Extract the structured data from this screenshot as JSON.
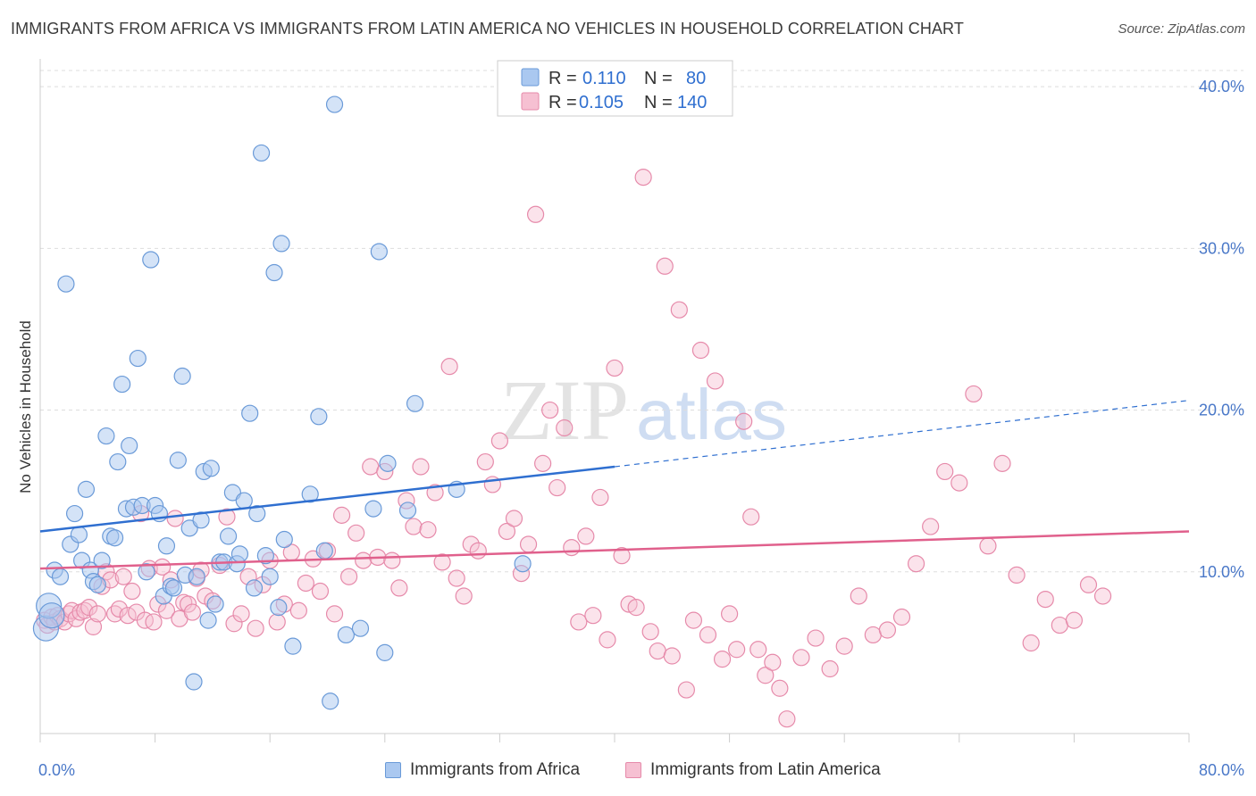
{
  "title": "IMMIGRANTS FROM AFRICA VS IMMIGRANTS FROM LATIN AMERICA NO VEHICLES IN HOUSEHOLD CORRELATION CHART",
  "source": "Source: ZipAtlas.com",
  "watermark": {
    "zip": "ZIP",
    "atlas": "atlas"
  },
  "colors": {
    "africa_fill": "#aac8f0",
    "africa_stroke": "#6a9ad8",
    "africa_line": "#2f6fd0",
    "latin_fill": "#f6c0d2",
    "latin_stroke": "#e68aaa",
    "latin_line": "#e0608c",
    "tick_label": "#4a78c8",
    "grid": "#dddddd"
  },
  "legend": {
    "africa": {
      "r_label": "R =",
      "r_value": "0.110",
      "n_label": "N =",
      "n_value": "80"
    },
    "latin": {
      "r_label": "R =",
      "r_value": "0.105",
      "n_label": "N =",
      "n_value": "140"
    }
  },
  "chart_data": {
    "type": "scatter",
    "title": "IMMIGRANTS FROM AFRICA VS IMMIGRANTS FROM LATIN AMERICA NO VEHICLES IN HOUSEHOLD CORRELATION CHART",
    "xlabel": "",
    "ylabel": "No Vehicles in Household",
    "xlim": [
      0,
      80
    ],
    "ylim": [
      0,
      41
    ],
    "x_tick_labels": [
      "0.0%",
      "80.0%"
    ],
    "y_ticks": [
      10,
      20,
      30,
      40
    ],
    "y_tick_labels": [
      "10.0%",
      "20.0%",
      "30.0%",
      "40.0%"
    ],
    "grid": true,
    "legend_position": "top-center",
    "series": [
      {
        "name": "Immigrants from Africa",
        "trend": {
          "x": [
            0,
            40
          ],
          "y": [
            12.5,
            16.5
          ],
          "dashed_to": [
            80,
            20.6
          ]
        },
        "points": [
          [
            0.4,
            6.5
          ],
          [
            0.6,
            7.9
          ],
          [
            0.8,
            7.3
          ],
          [
            1.0,
            10.1
          ],
          [
            1.4,
            9.7
          ],
          [
            1.8,
            27.8
          ],
          [
            2.1,
            11.7
          ],
          [
            2.4,
            13.6
          ],
          [
            2.7,
            12.3
          ],
          [
            2.9,
            10.7
          ],
          [
            3.2,
            15.1
          ],
          [
            3.5,
            10.1
          ],
          [
            3.7,
            9.4
          ],
          [
            4.0,
            9.2
          ],
          [
            4.3,
            10.7
          ],
          [
            4.6,
            18.4
          ],
          [
            4.9,
            12.2
          ],
          [
            5.2,
            12.1
          ],
          [
            5.4,
            16.8
          ],
          [
            5.7,
            21.6
          ],
          [
            6.0,
            13.9
          ],
          [
            6.2,
            17.8
          ],
          [
            6.5,
            14.0
          ],
          [
            6.8,
            23.2
          ],
          [
            7.1,
            14.1
          ],
          [
            7.4,
            10.0
          ],
          [
            7.7,
            29.3
          ],
          [
            8.0,
            14.1
          ],
          [
            8.3,
            13.6
          ],
          [
            8.6,
            8.5
          ],
          [
            8.8,
            11.6
          ],
          [
            9.1,
            9.1
          ],
          [
            9.3,
            9.0
          ],
          [
            9.6,
            16.9
          ],
          [
            9.9,
            22.1
          ],
          [
            10.1,
            9.8
          ],
          [
            10.4,
            12.7
          ],
          [
            10.7,
            3.2
          ],
          [
            10.9,
            9.7
          ],
          [
            11.2,
            13.2
          ],
          [
            11.4,
            16.2
          ],
          [
            11.7,
            7.0
          ],
          [
            11.9,
            16.4
          ],
          [
            12.2,
            8.0
          ],
          [
            12.5,
            10.6
          ],
          [
            12.8,
            10.6
          ],
          [
            13.1,
            12.2
          ],
          [
            13.4,
            14.9
          ],
          [
            13.7,
            10.5
          ],
          [
            13.9,
            11.1
          ],
          [
            14.2,
            14.4
          ],
          [
            14.6,
            19.8
          ],
          [
            14.9,
            9.0
          ],
          [
            15.1,
            13.6
          ],
          [
            15.4,
            35.9
          ],
          [
            15.7,
            11.0
          ],
          [
            16.0,
            9.7
          ],
          [
            16.3,
            28.5
          ],
          [
            16.6,
            7.8
          ],
          [
            16.8,
            30.3
          ],
          [
            17.0,
            12.0
          ],
          [
            17.6,
            5.4
          ],
          [
            18.8,
            14.8
          ],
          [
            19.4,
            19.6
          ],
          [
            19.8,
            11.3
          ],
          [
            20.2,
            2.0
          ],
          [
            20.5,
            38.9
          ],
          [
            21.3,
            6.1
          ],
          [
            22.3,
            6.5
          ],
          [
            23.2,
            13.9
          ],
          [
            23.6,
            29.8
          ],
          [
            24.2,
            16.7
          ],
          [
            24.0,
            5.0
          ],
          [
            25.6,
            13.8
          ],
          [
            26.1,
            20.4
          ],
          [
            29.0,
            15.1
          ],
          [
            33.6,
            10.5
          ]
        ]
      },
      {
        "name": "Immigrants from Latin America",
        "trend": {
          "x": [
            0,
            80
          ],
          "y": [
            10.2,
            12.5
          ]
        },
        "points": [
          [
            0.3,
            7.0
          ],
          [
            0.5,
            6.7
          ],
          [
            0.8,
            7.2
          ],
          [
            1.0,
            6.9
          ],
          [
            1.2,
            7.3
          ],
          [
            1.4,
            7.1
          ],
          [
            1.7,
            6.9
          ],
          [
            2.0,
            7.4
          ],
          [
            2.2,
            7.6
          ],
          [
            2.5,
            7.1
          ],
          [
            2.8,
            7.5
          ],
          [
            3.1,
            7.6
          ],
          [
            3.4,
            7.8
          ],
          [
            3.7,
            6.6
          ],
          [
            4.0,
            7.4
          ],
          [
            4.3,
            9.1
          ],
          [
            4.6,
            10.0
          ],
          [
            4.9,
            9.5
          ],
          [
            5.2,
            7.4
          ],
          [
            5.5,
            7.7
          ],
          [
            5.8,
            9.7
          ],
          [
            6.1,
            7.3
          ],
          [
            6.4,
            8.8
          ],
          [
            6.7,
            7.5
          ],
          [
            7.0,
            13.6
          ],
          [
            7.3,
            7.0
          ],
          [
            7.6,
            10.2
          ],
          [
            7.9,
            6.9
          ],
          [
            8.2,
            8.0
          ],
          [
            8.5,
            10.3
          ],
          [
            8.8,
            7.6
          ],
          [
            9.1,
            9.5
          ],
          [
            9.4,
            13.3
          ],
          [
            9.7,
            7.1
          ],
          [
            10.0,
            8.1
          ],
          [
            10.3,
            8.0
          ],
          [
            10.6,
            7.5
          ],
          [
            10.9,
            9.6
          ],
          [
            11.2,
            10.1
          ],
          [
            11.5,
            8.5
          ],
          [
            12.0,
            8.2
          ],
          [
            12.5,
            10.4
          ],
          [
            13.0,
            13.4
          ],
          [
            13.5,
            6.8
          ],
          [
            14.0,
            7.4
          ],
          [
            14.5,
            9.7
          ],
          [
            15.0,
            6.5
          ],
          [
            15.5,
            9.2
          ],
          [
            16.0,
            10.7
          ],
          [
            16.5,
            6.9
          ],
          [
            17.0,
            8.0
          ],
          [
            17.5,
            11.2
          ],
          [
            18.0,
            7.6
          ],
          [
            18.5,
            9.3
          ],
          [
            19.0,
            10.8
          ],
          [
            19.5,
            8.8
          ],
          [
            20.0,
            11.3
          ],
          [
            20.5,
            7.4
          ],
          [
            21.0,
            13.5
          ],
          [
            21.5,
            9.7
          ],
          [
            22.0,
            12.4
          ],
          [
            22.5,
            10.7
          ],
          [
            23.0,
            16.5
          ],
          [
            23.5,
            10.9
          ],
          [
            24.0,
            16.2
          ],
          [
            24.5,
            10.7
          ],
          [
            25.0,
            9.0
          ],
          [
            25.5,
            14.4
          ],
          [
            26.0,
            12.8
          ],
          [
            26.5,
            16.5
          ],
          [
            27.0,
            12.6
          ],
          [
            27.5,
            14.9
          ],
          [
            28.0,
            10.6
          ],
          [
            28.5,
            22.7
          ],
          [
            29.0,
            9.6
          ],
          [
            29.5,
            8.5
          ],
          [
            30.0,
            11.7
          ],
          [
            30.5,
            11.3
          ],
          [
            31.0,
            16.8
          ],
          [
            31.5,
            15.4
          ],
          [
            32.0,
            18.1
          ],
          [
            32.5,
            12.5
          ],
          [
            33.0,
            13.3
          ],
          [
            33.5,
            9.9
          ],
          [
            34.0,
            11.7
          ],
          [
            34.5,
            32.1
          ],
          [
            35.0,
            16.7
          ],
          [
            35.5,
            20.0
          ],
          [
            36.0,
            15.2
          ],
          [
            36.5,
            18.9
          ],
          [
            37.0,
            11.5
          ],
          [
            37.5,
            6.9
          ],
          [
            38.0,
            12.2
          ],
          [
            38.5,
            7.3
          ],
          [
            39.0,
            14.6
          ],
          [
            39.5,
            5.8
          ],
          [
            40.0,
            22.6
          ],
          [
            40.5,
            11.0
          ],
          [
            41.0,
            8.0
          ],
          [
            41.5,
            7.8
          ],
          [
            42.0,
            34.4
          ],
          [
            42.5,
            6.3
          ],
          [
            43.0,
            5.1
          ],
          [
            43.5,
            28.9
          ],
          [
            44.0,
            4.8
          ],
          [
            44.5,
            26.2
          ],
          [
            45.0,
            2.7
          ],
          [
            45.5,
            7.0
          ],
          [
            46.0,
            23.7
          ],
          [
            46.5,
            6.1
          ],
          [
            47.0,
            21.8
          ],
          [
            47.5,
            4.6
          ],
          [
            48.0,
            7.4
          ],
          [
            48.5,
            5.2
          ],
          [
            49.0,
            19.3
          ],
          [
            49.5,
            13.4
          ],
          [
            50.0,
            5.2
          ],
          [
            50.5,
            3.6
          ],
          [
            51.0,
            4.4
          ],
          [
            51.5,
            2.8
          ],
          [
            52.0,
            0.9
          ],
          [
            53.0,
            4.7
          ],
          [
            54.0,
            5.9
          ],
          [
            55.0,
            4.0
          ],
          [
            56.0,
            5.4
          ],
          [
            57.0,
            8.5
          ],
          [
            58.0,
            6.1
          ],
          [
            59.0,
            6.4
          ],
          [
            60.0,
            7.2
          ],
          [
            61.0,
            10.5
          ],
          [
            62.0,
            12.8
          ],
          [
            63.0,
            16.2
          ],
          [
            64.0,
            15.5
          ],
          [
            65.0,
            21.0
          ],
          [
            66.0,
            11.6
          ],
          [
            67.0,
            16.7
          ],
          [
            68.0,
            9.8
          ],
          [
            69.0,
            5.6
          ],
          [
            70.0,
            8.3
          ],
          [
            71.0,
            6.7
          ],
          [
            72.0,
            7.0
          ],
          [
            73.0,
            9.2
          ],
          [
            74.0,
            8.5
          ]
        ]
      }
    ]
  },
  "bottom_legend": {
    "africa_label": "Immigrants from Africa",
    "latin_label": "Immigrants from Latin America"
  }
}
